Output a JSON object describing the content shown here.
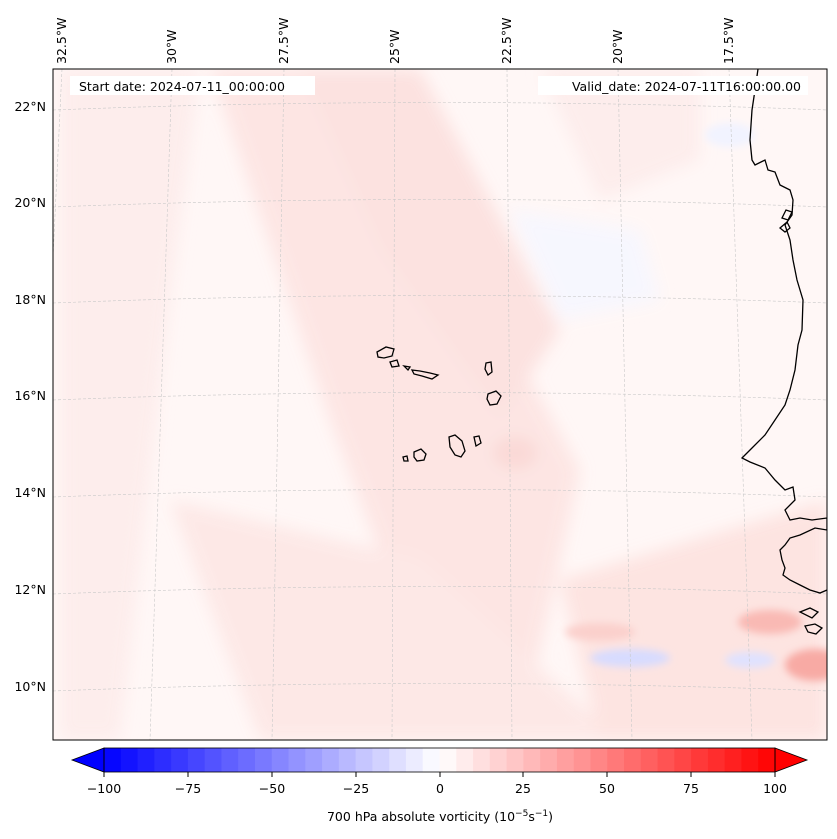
{
  "header": {
    "start_date": "Start date: 2024-07-11_00:00:00",
    "valid_date": "Valid_date: 2024-07-11T16:00:00.00"
  },
  "map": {
    "lon_labels": [
      "32.5°W",
      "30°W",
      "27.5°W",
      "25°W",
      "22.5°W",
      "20°W",
      "17.5°W"
    ],
    "lat_labels": [
      "22°N",
      "20°N",
      "18°N",
      "16°N",
      "14°N",
      "12°N",
      "10°N"
    ],
    "field": "700 hPa absolute vorticity"
  },
  "colorbar": {
    "ticks": [
      "−100",
      "−75",
      "−50",
      "−25",
      "0",
      "25",
      "50",
      "75",
      "100"
    ],
    "label_prefix": "700 hPa absolute vorticity (10",
    "label_exp1": "−5",
    "label_mid": "s",
    "label_exp2": "−1",
    "label_suffix": ")",
    "min": -100,
    "max": 100,
    "levels": 40,
    "color_min": "#0000ff",
    "color_mid": "#ffffff",
    "color_max": "#ff0000"
  }
}
